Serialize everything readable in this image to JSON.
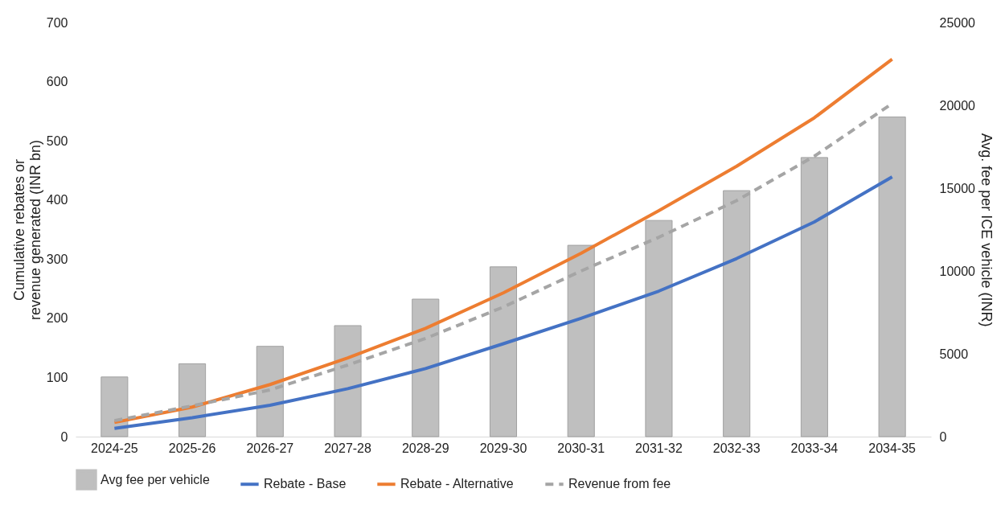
{
  "chart_data": {
    "type": "bar",
    "categories": [
      "2024-25",
      "2025-26",
      "2026-27",
      "2027-28",
      "2028-29",
      "2029-30",
      "2030-31",
      "2031-32",
      "2032-33",
      "2033-34",
      "2034-35"
    ],
    "ylabel": "Cumulative rebates or revenue generated (INR bn)",
    "y2label": "Avg. fee per ICE vehicle (INR)",
    "ylim": [
      0,
      700
    ],
    "yticks": [
      0,
      100,
      200,
      300,
      400,
      500,
      600,
      700
    ],
    "y2lim": [
      0,
      25000
    ],
    "y2ticks": [
      0,
      5000,
      10000,
      15000,
      20000,
      25000
    ],
    "grid": false,
    "legend": "bottom",
    "series": [
      {
        "name": "Avg fee per vehicle",
        "axis": "y2",
        "color": "#bfbfbf",
        "values": [
          3600,
          4400,
          5450,
          6700,
          8300,
          10250,
          11550,
          13050,
          14850,
          16850,
          19300
        ]
      },
      {
        "name": "Rebate - Base",
        "type": "line",
        "color": "#4472c4",
        "line_style": "solid",
        "values": [
          14,
          32,
          53,
          81,
          115,
          157,
          200,
          246,
          301,
          363,
          439
        ]
      },
      {
        "name": "Rebate - Alternative",
        "type": "line",
        "color": "#ed7d31",
        "line_style": "solid",
        "values": [
          24,
          50,
          88,
          133,
          183,
          243,
          310,
          382,
          457,
          539,
          638
        ]
      },
      {
        "name": "Revenue from fee",
        "type": "line",
        "color": "#a5a5a5",
        "line_style": "dashed",
        "values": [
          27,
          52,
          79,
          121,
          166,
          219,
          280,
          337,
          399,
          474,
          563
        ]
      }
    ]
  }
}
